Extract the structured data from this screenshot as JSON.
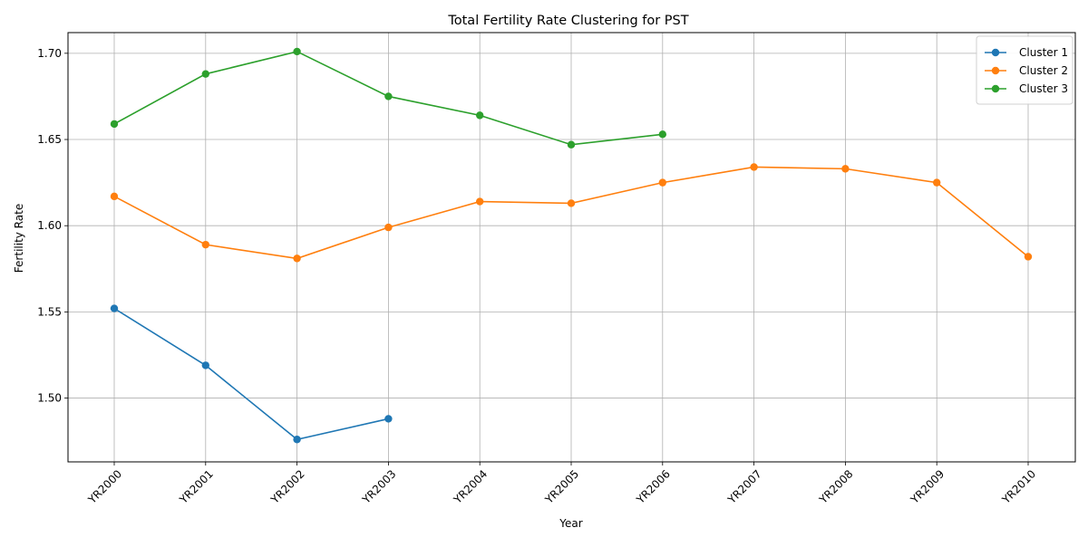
{
  "chart_data": {
    "type": "line",
    "title": "Total Fertility Rate Clustering for PST",
    "xlabel": "Year",
    "ylabel": "Fertility Rate",
    "categories": [
      "YR2000",
      "YR2001",
      "YR2002",
      "YR2003",
      "YR2004",
      "YR2005",
      "YR2006",
      "YR2007",
      "YR2008",
      "YR2009",
      "YR2010"
    ],
    "ylim": [
      1.463,
      1.712
    ],
    "yticks": [
      1.5,
      1.55,
      1.6,
      1.65,
      1.7
    ],
    "ytick_labels": [
      "1.50",
      "1.55",
      "1.60",
      "1.65",
      "1.70"
    ],
    "grid": true,
    "legend_position": "top-right",
    "series": [
      {
        "name": "Cluster 1",
        "color": "#1f77b4",
        "values": [
          1.552,
          1.519,
          1.476,
          1.488,
          null,
          null,
          null,
          null,
          null,
          null,
          null
        ]
      },
      {
        "name": "Cluster 2",
        "color": "#ff7f0e",
        "values": [
          1.617,
          1.589,
          1.581,
          1.599,
          1.614,
          1.613,
          1.625,
          1.634,
          1.633,
          1.625,
          1.582
        ]
      },
      {
        "name": "Cluster 3",
        "color": "#2ca02c",
        "values": [
          1.659,
          1.688,
          1.701,
          1.675,
          1.664,
          1.647,
          1.653,
          null,
          null,
          null,
          null
        ]
      }
    ]
  }
}
